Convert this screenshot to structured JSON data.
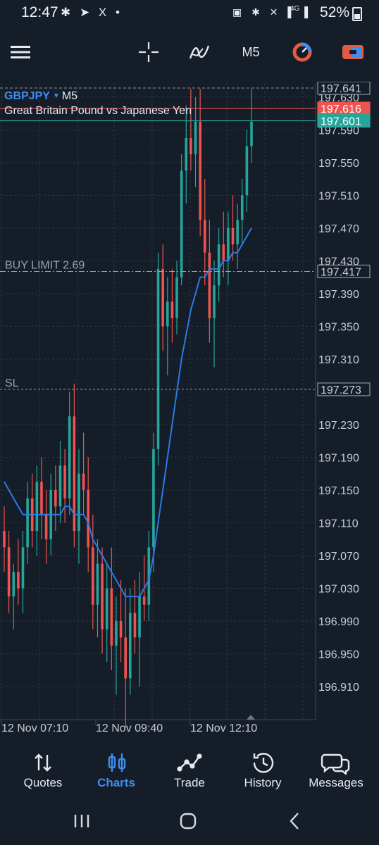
{
  "status_bar": {
    "time": "12:47",
    "left_icons": "✱ ➤ X •",
    "right_icons": "▣ ✱ ✕ ▌ ▌",
    "network": "4G",
    "battery": "52%"
  },
  "toolbar": {
    "menu_icon": "hamburger-icon",
    "crosshair_icon": "crosshair-icon",
    "indicators_icon": "indicators-icon",
    "period": "M5",
    "objects_icon": "objects-icon",
    "trade_icon": "trade-icon"
  },
  "chart": {
    "symbol": "GBPJPY",
    "period": "M5",
    "description": "Great Britain Pound vs Japanese Yen",
    "buy_limit_label": "BUY LIMIT 2.69",
    "sl_label": "SL"
  },
  "chart_data": {
    "type": "candlestick",
    "symbol": "GBPJPY",
    "timeframe": "M5",
    "price_labels": [
      "197.630",
      "197.590",
      "197.550",
      "197.510",
      "197.470",
      "197.430",
      "197.390",
      "197.350",
      "197.310",
      "197.230",
      "197.190",
      "197.150",
      "197.110",
      "197.070",
      "197.030",
      "196.990",
      "196.950",
      "196.910"
    ],
    "time_labels": [
      "12 Nov 07:10",
      "12 Nov 09:40",
      "12 Nov 12:10"
    ],
    "price_tags": {
      "high": "197.641",
      "bid": "197.616",
      "ask": "197.601",
      "buy_limit": "197.417",
      "sl": "197.273"
    },
    "ylim": [
      196.88,
      197.65
    ],
    "levels": {
      "high": 197.641,
      "bid": 197.616,
      "ask": 197.601,
      "buy_limit": 197.417,
      "sl": 197.273
    },
    "candles": [
      [
        197.1,
        197.13,
        197.05,
        197.08
      ],
      [
        197.08,
        197.1,
        197.0,
        197.02
      ],
      [
        197.02,
        197.06,
        196.98,
        197.05
      ],
      [
        197.05,
        197.09,
        197.01,
        197.03
      ],
      [
        197.03,
        197.1,
        197.0,
        197.08
      ],
      [
        197.08,
        197.16,
        197.06,
        197.14
      ],
      [
        197.14,
        197.17,
        197.08,
        197.1
      ],
      [
        197.1,
        197.18,
        197.07,
        197.16
      ],
      [
        197.16,
        197.19,
        197.09,
        197.12
      ],
      [
        197.12,
        197.15,
        197.06,
        197.09
      ],
      [
        197.09,
        197.17,
        197.07,
        197.15
      ],
      [
        197.15,
        197.18,
        197.1,
        197.13
      ],
      [
        197.13,
        197.21,
        197.11,
        197.18
      ],
      [
        197.18,
        197.2,
        197.11,
        197.14
      ],
      [
        197.14,
        197.27,
        197.12,
        197.24
      ],
      [
        197.24,
        197.28,
        197.08,
        197.1
      ],
      [
        197.1,
        197.2,
        197.06,
        197.17
      ],
      [
        197.17,
        197.22,
        197.12,
        197.15
      ],
      [
        197.15,
        197.19,
        197.05,
        197.08
      ],
      [
        197.08,
        197.12,
        196.98,
        197.01
      ],
      [
        197.01,
        197.09,
        196.97,
        197.06
      ],
      [
        197.06,
        197.08,
        196.95,
        196.98
      ],
      [
        196.98,
        197.06,
        196.94,
        197.03
      ],
      [
        197.03,
        197.08,
        196.93,
        196.96
      ],
      [
        196.96,
        197.02,
        196.9,
        196.99
      ],
      [
        196.99,
        197.04,
        196.94,
        196.97
      ],
      [
        196.97,
        197.03,
        196.86,
        196.92
      ],
      [
        196.92,
        197.03,
        196.9,
        197.0
      ],
      [
        197.0,
        197.04,
        196.95,
        196.97
      ],
      [
        196.97,
        197.05,
        196.91,
        197.02
      ],
      [
        197.02,
        197.07,
        196.99,
        197.01
      ],
      [
        197.01,
        197.1,
        196.99,
        197.08
      ],
      [
        197.08,
        197.22,
        197.05,
        197.2
      ],
      [
        197.2,
        197.44,
        197.18,
        197.42
      ],
      [
        197.42,
        197.45,
        197.32,
        197.35
      ],
      [
        197.35,
        197.41,
        197.29,
        197.38
      ],
      [
        197.38,
        197.42,
        197.33,
        197.36
      ],
      [
        197.36,
        197.43,
        197.34,
        197.41
      ],
      [
        197.41,
        197.56,
        197.4,
        197.54
      ],
      [
        197.54,
        197.62,
        197.5,
        197.58
      ],
      [
        197.58,
        197.64,
        197.54,
        197.56
      ],
      [
        197.56,
        197.63,
        197.52,
        197.6
      ],
      [
        197.6,
        197.64,
        197.46,
        197.48
      ],
      [
        197.48,
        197.53,
        197.4,
        197.44
      ],
      [
        197.44,
        197.48,
        197.33,
        197.36
      ],
      [
        197.36,
        197.43,
        197.3,
        197.4
      ],
      [
        197.4,
        197.47,
        197.38,
        197.45
      ],
      [
        197.45,
        197.49,
        197.41,
        197.43
      ],
      [
        197.43,
        197.49,
        197.4,
        197.47
      ],
      [
        197.47,
        197.51,
        197.43,
        197.45
      ],
      [
        197.45,
        197.5,
        197.42,
        197.48
      ],
      [
        197.48,
        197.53,
        197.45,
        197.51
      ],
      [
        197.51,
        197.59,
        197.49,
        197.57
      ],
      [
        197.57,
        197.64,
        197.55,
        197.6
      ]
    ],
    "ma_series_name": "",
    "ma": [
      197.16,
      197.15,
      197.14,
      197.13,
      197.12,
      197.12,
      197.12,
      197.12,
      197.12,
      197.12,
      197.12,
      197.12,
      197.12,
      197.13,
      197.13,
      197.12,
      197.12,
      197.12,
      197.11,
      197.09,
      197.08,
      197.07,
      197.06,
      197.05,
      197.04,
      197.03,
      197.02,
      197.02,
      197.02,
      197.02,
      197.03,
      197.04,
      197.07,
      197.11,
      197.15,
      197.19,
      197.23,
      197.27,
      197.31,
      197.34,
      197.37,
      197.39,
      197.41,
      197.41,
      197.42,
      197.42,
      197.42,
      197.43,
      197.43,
      197.44,
      197.44,
      197.45,
      197.46,
      197.47
    ],
    "colors": {
      "bull": "#26a69a",
      "bear": "#ef5350",
      "ma": "#2c7be5",
      "grid": "#2b3644",
      "axis_text": "#c7ccd3",
      "ask_tag": "#26a69a",
      "bid_tag": "#ef5350"
    },
    "grid": true
  },
  "bottom_nav": {
    "items": [
      {
        "label": "Quotes",
        "icon": "quotes-icon"
      },
      {
        "label": "Charts",
        "icon": "charts-icon",
        "active": true
      },
      {
        "label": "Trade",
        "icon": "trade-icon"
      },
      {
        "label": "History",
        "icon": "history-icon"
      },
      {
        "label": "Messages",
        "icon": "messages-icon"
      }
    ]
  },
  "system_nav": {
    "recents_icon": "recents-icon",
    "home_icon": "home-icon",
    "back_icon": "back-icon"
  },
  "accent_color": "#3d8ef0",
  "background_color": "#151d28"
}
